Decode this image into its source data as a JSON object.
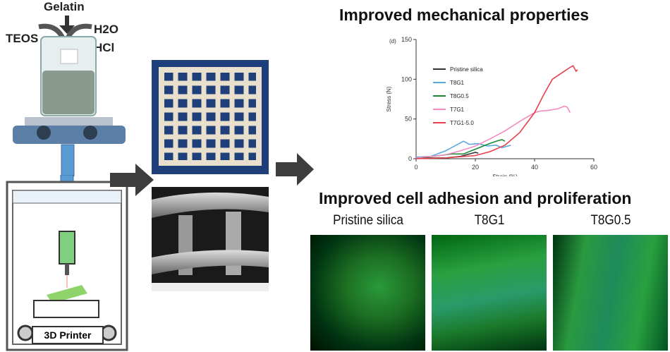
{
  "reagents": {
    "gelatin": "Gelatin",
    "teos": "TEOS",
    "h2o": "H2O",
    "hcl": "HCl"
  },
  "printer": {
    "label": "3D Printer"
  },
  "titles": {
    "mechanical": "Improved mechanical properties",
    "cell": "Improved cell adhesion and proliferation"
  },
  "cell_images": [
    {
      "label": "Pristine silica"
    },
    {
      "label": "T8G1"
    },
    {
      "label": "T8G0.5"
    }
  ],
  "colors": {
    "arrow": "#3d3d3d",
    "blue_arrow": "#5b9bd5",
    "cell_stain": "#2ea52e",
    "nuclei": "#2a3aa0"
  },
  "chart_data": {
    "type": "line",
    "panel_label": "(d)",
    "xlabel": "Strain (%)",
    "ylabel": "Stress (N)",
    "xlim": [
      0,
      60
    ],
    "ylim": [
      0,
      150
    ],
    "xticks": [
      0,
      20,
      40,
      60
    ],
    "yticks": [
      0,
      50,
      100,
      150
    ],
    "legend": "top-left",
    "series": [
      {
        "name": "Pristine silica",
        "color": "#333333",
        "x": [
          0,
          10,
          15,
          18,
          20,
          21
        ],
        "y": [
          1,
          1,
          3,
          6,
          8,
          7
        ]
      },
      {
        "name": "T8G1",
        "color": "#5aa9e0",
        "x": [
          0,
          5,
          10,
          14,
          16,
          18,
          21,
          24,
          27,
          29,
          32
        ],
        "y": [
          2,
          3,
          10,
          18,
          22,
          18,
          19,
          16,
          17,
          14,
          17
        ]
      },
      {
        "name": "T8G0.5",
        "color": "#1a8a3a",
        "x": [
          0,
          8,
          12,
          16,
          20,
          24,
          27,
          29,
          30
        ],
        "y": [
          1,
          4,
          6,
          6,
          12,
          18,
          22,
          24,
          22
        ]
      },
      {
        "name": "T7G1",
        "color": "#f08cc0",
        "x": [
          0,
          10,
          15,
          20,
          25,
          30,
          35,
          40,
          42,
          45,
          48,
          50,
          51,
          52
        ],
        "y": [
          1,
          5,
          10,
          16,
          25,
          35,
          47,
          58,
          60,
          61,
          63,
          66,
          65,
          58
        ]
      },
      {
        "name": "T7G1-5.0",
        "color": "#e8404a",
        "x": [
          0,
          10,
          20,
          25,
          30,
          35,
          40,
          43,
          46,
          50,
          52,
          53,
          54,
          54.5
        ],
        "y": [
          0,
          1,
          4,
          9,
          17,
          33,
          58,
          80,
          100,
          110,
          115,
          117,
          110,
          112
        ]
      }
    ]
  }
}
